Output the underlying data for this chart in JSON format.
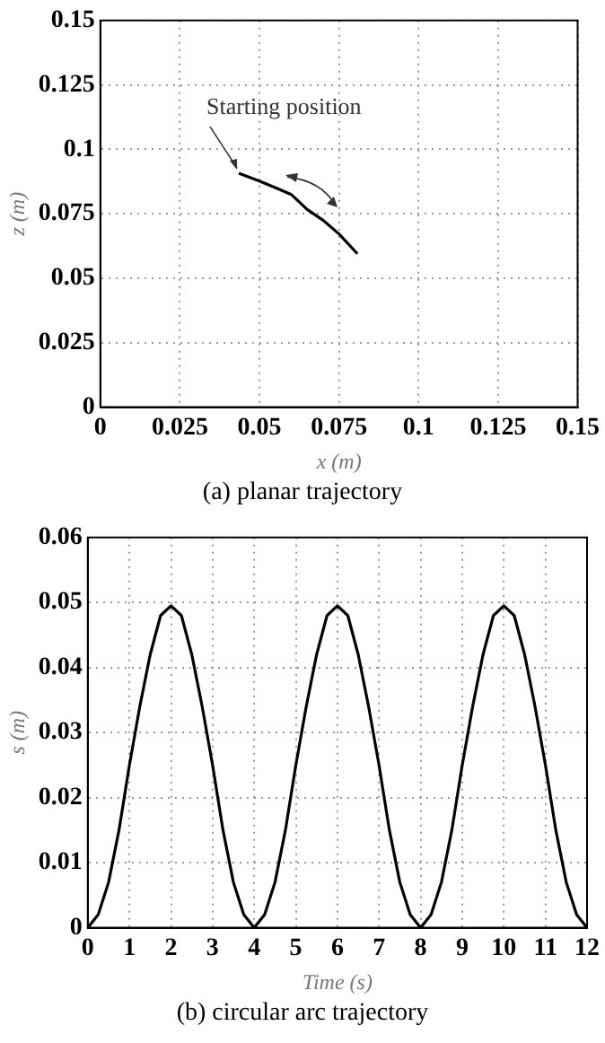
{
  "chart_data": [
    {
      "type": "line",
      "xlabel": "x (m)",
      "ylabel": "z (m)",
      "xlim": [
        0,
        0.15
      ],
      "ylim": [
        0,
        0.15
      ],
      "xticks": [
        0,
        0.025,
        0.05,
        0.075,
        0.1,
        0.125,
        0.15
      ],
      "yticks": [
        0,
        0.025,
        0.05,
        0.075,
        0.1,
        0.125,
        0.15
      ],
      "grid": true,
      "x": [
        0.0435,
        0.05,
        0.0558,
        0.06,
        0.065,
        0.07,
        0.075,
        0.0808
      ],
      "series": [
        {
          "color": "#000000",
          "values": [
            0.0907,
            0.0877,
            0.0847,
            0.0825,
            0.0767,
            0.0725,
            0.0672,
            0.0595
          ]
        }
      ],
      "annotations": [
        {
          "text": "Starting position",
          "x": 0.0435,
          "y": 0.0907
        },
        "(a) planar trajectory"
      ]
    },
    {
      "type": "line",
      "xlabel": "Time (s)",
      "ylabel": "s (m)",
      "xlim": [
        0,
        12
      ],
      "ylim": [
        0,
        0.06
      ],
      "xticks": [
        0,
        1,
        2,
        3,
        4,
        5,
        6,
        7,
        8,
        9,
        10,
        11,
        12
      ],
      "yticks": [
        0,
        0.01,
        0.02,
        0.03,
        0.04,
        0.05,
        0.06
      ],
      "grid": true,
      "x": [
        0,
        0.25,
        0.5,
        0.75,
        1,
        1.25,
        1.5,
        1.75,
        2,
        2.25,
        2.5,
        2.75,
        3,
        3.25,
        3.5,
        3.75,
        4,
        4.25,
        4.5,
        4.75,
        5,
        5.25,
        5.5,
        5.75,
        6,
        6.25,
        6.5,
        6.75,
        7,
        7.25,
        7.5,
        7.75,
        8,
        8.25,
        8.5,
        8.75,
        9,
        9.25,
        9.5,
        9.75,
        10,
        10.25,
        10.5,
        10.75,
        11,
        11.25,
        11.5,
        11.75,
        12
      ],
      "series": [
        {
          "color": "#000000",
          "values": [
            0,
            0.002,
            0.007,
            0.015,
            0.025,
            0.034,
            0.042,
            0.048,
            0.0495,
            0.048,
            0.042,
            0.034,
            0.025,
            0.015,
            0.007,
            0.002,
            0,
            0.002,
            0.007,
            0.015,
            0.025,
            0.034,
            0.042,
            0.048,
            0.0495,
            0.048,
            0.042,
            0.034,
            0.025,
            0.015,
            0.007,
            0.002,
            0,
            0.002,
            0.007,
            0.015,
            0.025,
            0.034,
            0.042,
            0.048,
            0.0495,
            0.048,
            0.042,
            0.034,
            0.025,
            0.015,
            0.007,
            0.002,
            0
          ]
        }
      ],
      "annotations": [
        "(b) circular arc trajectory"
      ]
    }
  ]
}
